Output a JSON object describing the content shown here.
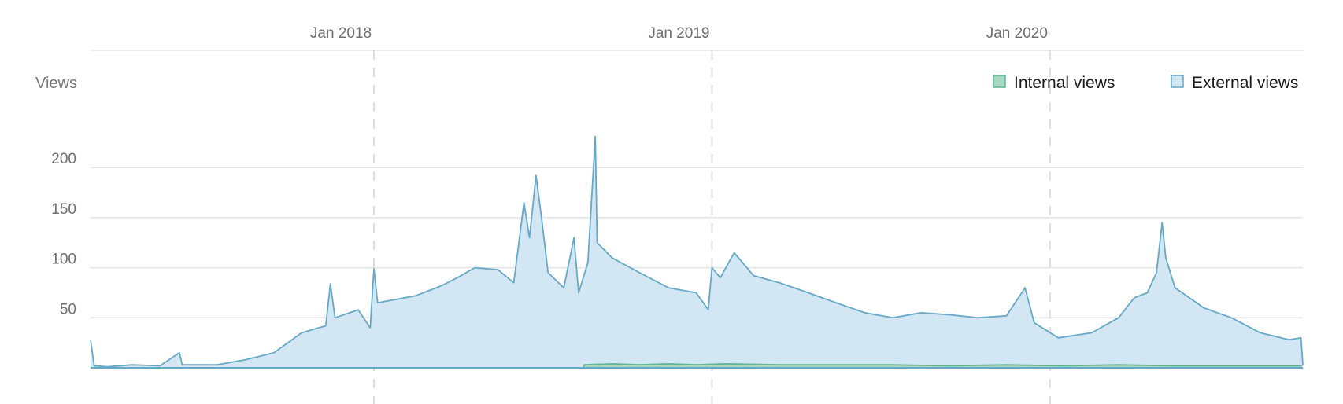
{
  "chart_data": {
    "type": "area",
    "ylabel": "Views",
    "ylim": [
      0,
      230
    ],
    "yticks": [
      50,
      100,
      150,
      200
    ],
    "xlim": [
      "2017-03-01",
      "2020-09-30"
    ],
    "xticks": [
      {
        "label": "Jan 2018",
        "date": "2018-01-01"
      },
      {
        "label": "Jan 2019",
        "date": "2019-01-01"
      },
      {
        "label": "Jan 2020",
        "date": "2020-01-01"
      }
    ],
    "grid": true,
    "legend_position": "top-right",
    "series": [
      {
        "name": "Internal views",
        "color": "#5fb596",
        "fill": "#a6d8c2",
        "points": [
          [
            "2018-08-15",
            0
          ],
          [
            "2018-08-16",
            3
          ],
          [
            "2018-09-15",
            4
          ],
          [
            "2018-10-15",
            3
          ],
          [
            "2018-11-15",
            4
          ],
          [
            "2018-12-15",
            3
          ],
          [
            "2019-01-15",
            4
          ],
          [
            "2019-03-15",
            3
          ],
          [
            "2019-05-15",
            3
          ],
          [
            "2019-07-15",
            3
          ],
          [
            "2019-09-15",
            2
          ],
          [
            "2019-11-15",
            3
          ],
          [
            "2020-01-15",
            2
          ],
          [
            "2020-03-15",
            3
          ],
          [
            "2020-05-15",
            2
          ],
          [
            "2020-07-15",
            2
          ],
          [
            "2020-09-29",
            2
          ]
        ]
      },
      {
        "name": "External views",
        "color": "#65a9c7",
        "fill": "#d3e6f4",
        "points": [
          [
            "2017-03-01",
            28
          ],
          [
            "2017-03-05",
            2
          ],
          [
            "2017-03-20",
            1
          ],
          [
            "2017-04-15",
            3
          ],
          [
            "2017-05-15",
            2
          ],
          [
            "2017-06-05",
            15
          ],
          [
            "2017-06-08",
            3
          ],
          [
            "2017-07-15",
            3
          ],
          [
            "2017-08-15",
            8
          ],
          [
            "2017-09-15",
            15
          ],
          [
            "2017-10-15",
            35
          ],
          [
            "2017-11-10",
            42
          ],
          [
            "2017-11-15",
            84
          ],
          [
            "2017-11-20",
            50
          ],
          [
            "2017-12-15",
            58
          ],
          [
            "2017-12-28",
            40
          ],
          [
            "2018-01-01",
            99
          ],
          [
            "2018-01-05",
            65
          ],
          [
            "2018-02-15",
            72
          ],
          [
            "2018-03-15",
            82
          ],
          [
            "2018-04-01",
            90
          ],
          [
            "2018-04-20",
            100
          ],
          [
            "2018-05-15",
            98
          ],
          [
            "2018-06-01",
            85
          ],
          [
            "2018-06-12",
            165
          ],
          [
            "2018-06-18",
            130
          ],
          [
            "2018-06-25",
            192
          ],
          [
            "2018-07-01",
            150
          ],
          [
            "2018-07-08",
            95
          ],
          [
            "2018-07-25",
            80
          ],
          [
            "2018-08-05",
            130
          ],
          [
            "2018-08-10",
            75
          ],
          [
            "2018-08-20",
            105
          ],
          [
            "2018-08-28",
            231
          ],
          [
            "2018-08-30",
            125
          ],
          [
            "2018-09-15",
            110
          ],
          [
            "2018-10-15",
            95
          ],
          [
            "2018-11-15",
            80
          ],
          [
            "2018-12-15",
            75
          ],
          [
            "2018-12-28",
            58
          ],
          [
            "2019-01-01",
            100
          ],
          [
            "2019-01-10",
            90
          ],
          [
            "2019-01-25",
            115
          ],
          [
            "2019-02-15",
            92
          ],
          [
            "2019-03-15",
            85
          ],
          [
            "2019-04-15",
            75
          ],
          [
            "2019-05-15",
            65
          ],
          [
            "2019-06-15",
            55
          ],
          [
            "2019-07-15",
            50
          ],
          [
            "2019-08-15",
            55
          ],
          [
            "2019-09-15",
            53
          ],
          [
            "2019-10-15",
            50
          ],
          [
            "2019-11-15",
            52
          ],
          [
            "2019-12-05",
            80
          ],
          [
            "2019-12-15",
            45
          ],
          [
            "2020-01-10",
            30
          ],
          [
            "2020-02-15",
            35
          ],
          [
            "2020-03-15",
            50
          ],
          [
            "2020-04-01",
            70
          ],
          [
            "2020-04-15",
            75
          ],
          [
            "2020-04-25",
            95
          ],
          [
            "2020-05-01",
            145
          ],
          [
            "2020-05-05",
            110
          ],
          [
            "2020-05-15",
            80
          ],
          [
            "2020-06-15",
            60
          ],
          [
            "2020-07-15",
            50
          ],
          [
            "2020-08-15",
            35
          ],
          [
            "2020-09-15",
            28
          ],
          [
            "2020-09-28",
            30
          ],
          [
            "2020-09-30",
            3
          ]
        ]
      }
    ]
  }
}
